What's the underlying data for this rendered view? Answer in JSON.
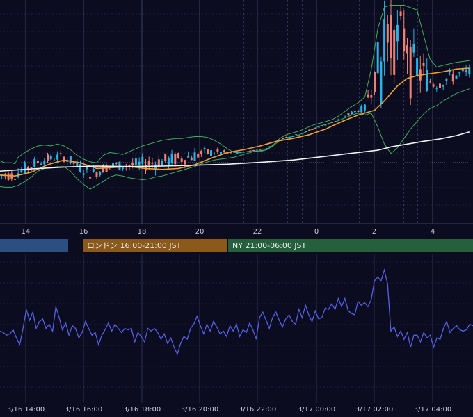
{
  "chart_data": [
    {
      "type": "candlestick",
      "overlays": [
        "bollinger-bands",
        "moving-average-orange",
        "moving-average-white"
      ],
      "x_ticks": [
        "14",
        "16",
        "18",
        "20",
        "22",
        "0",
        "2",
        "4"
      ],
      "grid": true,
      "bollinger": {
        "upper": [
          {
            "t": 0,
            "v": 0.65
          },
          {
            "t": 2,
            "v": 0.62
          },
          {
            "t": 4,
            "v": 0.62
          },
          {
            "t": 5,
            "v": 0.61
          },
          {
            "t": 6,
            "v": 0.68
          },
          {
            "t": 8,
            "v": 0.73
          },
          {
            "t": 10,
            "v": 0.77
          },
          {
            "t": 12,
            "v": 0.8
          },
          {
            "t": 14,
            "v": 0.81
          },
          {
            "t": 16,
            "v": 0.8
          },
          {
            "t": 18,
            "v": 0.82
          },
          {
            "t": 20,
            "v": 0.8
          },
          {
            "t": 22,
            "v": 0.76
          },
          {
            "t": 24,
            "v": 0.7
          },
          {
            "t": 26,
            "v": 0.66
          },
          {
            "t": 28,
            "v": 0.63
          },
          {
            "t": 30,
            "v": 0.62
          },
          {
            "t": 32,
            "v": 0.7
          },
          {
            "t": 34,
            "v": 0.73
          },
          {
            "t": 36,
            "v": 0.72
          },
          {
            "t": 38,
            "v": 0.71
          },
          {
            "t": 40,
            "v": 0.74
          },
          {
            "t": 42,
            "v": 0.77
          },
          {
            "t": 44,
            "v": 0.8
          },
          {
            "t": 46,
            "v": 0.82
          },
          {
            "t": 48,
            "v": 0.84
          },
          {
            "t": 50,
            "v": 0.86
          },
          {
            "t": 52,
            "v": 0.87
          },
          {
            "t": 54,
            "v": 0.88
          },
          {
            "t": 56,
            "v": 0.88
          },
          {
            "t": 58,
            "v": 0.89
          },
          {
            "t": 60,
            "v": 0.9
          },
          {
            "t": 62,
            "v": 0.9
          },
          {
            "t": 64,
            "v": 0.89
          },
          {
            "t": 66,
            "v": 0.86
          },
          {
            "t": 68,
            "v": 0.82
          },
          {
            "t": 70,
            "v": 0.77
          },
          {
            "t": 72,
            "v": 0.73
          },
          {
            "t": 74,
            "v": 0.73
          },
          {
            "t": 76,
            "v": 0.74
          },
          {
            "t": 78,
            "v": 0.75
          },
          {
            "t": 80,
            "v": 0.74
          },
          {
            "t": 82,
            "v": 0.76
          },
          {
            "t": 84,
            "v": 0.81
          },
          {
            "t": 86,
            "v": 0.88
          },
          {
            "t": 88,
            "v": 0.92
          },
          {
            "t": 90,
            "v": 0.94
          },
          {
            "t": 92,
            "v": 0.96
          },
          {
            "t": 94,
            "v": 0.99
          },
          {
            "t": 96,
            "v": 1.02
          },
          {
            "t": 98,
            "v": 1.04
          },
          {
            "t": 100,
            "v": 1.06
          },
          {
            "t": 102,
            "v": 1.08
          },
          {
            "t": 104,
            "v": 1.12
          },
          {
            "t": 106,
            "v": 1.17
          },
          {
            "t": 108,
            "v": 1.22
          },
          {
            "t": 110,
            "v": 1.26
          },
          {
            "t": 112,
            "v": 1.32
          },
          {
            "t": 114,
            "v": 1.62
          },
          {
            "t": 116,
            "v": 2.05
          },
          {
            "t": 118,
            "v": 2.28
          },
          {
            "t": 120,
            "v": 2.3
          },
          {
            "t": 124,
            "v": 2.3
          },
          {
            "t": 128,
            "v": 2.25
          },
          {
            "t": 130,
            "v": 1.98
          },
          {
            "t": 132,
            "v": 1.72
          },
          {
            "t": 134,
            "v": 1.64
          },
          {
            "t": 136,
            "v": 1.66
          },
          {
            "t": 140,
            "v": 1.69
          },
          {
            "t": 144,
            "v": 1.71
          }
        ],
        "lower": [
          {
            "t": 0,
            "v": 0.37
          },
          {
            "t": 2,
            "v": 0.36
          },
          {
            "t": 4,
            "v": 0.36
          },
          {
            "t": 6,
            "v": 0.38
          },
          {
            "t": 8,
            "v": 0.42
          },
          {
            "t": 10,
            "v": 0.47
          },
          {
            "t": 12,
            "v": 0.53
          },
          {
            "t": 14,
            "v": 0.56
          },
          {
            "t": 16,
            "v": 0.57
          },
          {
            "t": 18,
            "v": 0.58
          },
          {
            "t": 20,
            "v": 0.58
          },
          {
            "t": 22,
            "v": 0.53
          },
          {
            "t": 24,
            "v": 0.45
          },
          {
            "t": 26,
            "v": 0.39
          },
          {
            "t": 28,
            "v": 0.34
          },
          {
            "t": 30,
            "v": 0.38
          },
          {
            "t": 32,
            "v": 0.42
          },
          {
            "t": 34,
            "v": 0.47
          },
          {
            "t": 36,
            "v": 0.49
          },
          {
            "t": 38,
            "v": 0.48
          },
          {
            "t": 40,
            "v": 0.46
          },
          {
            "t": 42,
            "v": 0.45
          },
          {
            "t": 44,
            "v": 0.44
          },
          {
            "t": 46,
            "v": 0.45
          },
          {
            "t": 48,
            "v": 0.47
          },
          {
            "t": 50,
            "v": 0.48
          },
          {
            "t": 52,
            "v": 0.5
          },
          {
            "t": 54,
            "v": 0.52
          },
          {
            "t": 56,
            "v": 0.54
          },
          {
            "t": 58,
            "v": 0.56
          },
          {
            "t": 60,
            "v": 0.58
          },
          {
            "t": 62,
            "v": 0.61
          },
          {
            "t": 64,
            "v": 0.63
          },
          {
            "t": 66,
            "v": 0.65
          },
          {
            "t": 68,
            "v": 0.66
          },
          {
            "t": 70,
            "v": 0.67
          },
          {
            "t": 72,
            "v": 0.68
          },
          {
            "t": 74,
            "v": 0.7
          },
          {
            "t": 76,
            "v": 0.72
          },
          {
            "t": 78,
            "v": 0.74
          },
          {
            "t": 80,
            "v": 0.75
          },
          {
            "t": 82,
            "v": 0.76
          },
          {
            "t": 84,
            "v": 0.8
          },
          {
            "t": 86,
            "v": 0.86
          },
          {
            "t": 88,
            "v": 0.89
          },
          {
            "t": 90,
            "v": 0.9
          },
          {
            "t": 92,
            "v": 0.92
          },
          {
            "t": 94,
            "v": 0.95
          },
          {
            "t": 96,
            "v": 0.98
          },
          {
            "t": 98,
            "v": 1.01
          },
          {
            "t": 100,
            "v": 1.03
          },
          {
            "t": 102,
            "v": 1.05
          },
          {
            "t": 104,
            "v": 1.07
          },
          {
            "t": 106,
            "v": 1.1
          },
          {
            "t": 108,
            "v": 1.13
          },
          {
            "t": 110,
            "v": 1.15
          },
          {
            "t": 112,
            "v": 1.13
          },
          {
            "t": 114,
            "v": 1.15
          },
          {
            "t": 116,
            "v": 1.0
          },
          {
            "t": 118,
            "v": 0.82
          },
          {
            "t": 120,
            "v": 0.72
          },
          {
            "t": 122,
            "v": 0.78
          },
          {
            "t": 124,
            "v": 0.88
          },
          {
            "t": 126,
            "v": 0.98
          },
          {
            "t": 128,
            "v": 1.06
          },
          {
            "t": 130,
            "v": 1.14
          },
          {
            "t": 132,
            "v": 1.2
          },
          {
            "t": 134,
            "v": 1.23
          },
          {
            "t": 136,
            "v": 1.28
          },
          {
            "t": 140,
            "v": 1.36
          },
          {
            "t": 144,
            "v": 1.41
          }
        ],
        "color": "#3fae5c"
      },
      "ma_orange": {
        "values": [
          {
            "t": 0,
            "v": 0.49
          },
          {
            "t": 5,
            "v": 0.48
          },
          {
            "t": 10,
            "v": 0.52
          },
          {
            "t": 15,
            "v": 0.6
          },
          {
            "t": 20,
            "v": 0.65
          },
          {
            "t": 25,
            "v": 0.62
          },
          {
            "t": 30,
            "v": 0.56
          },
          {
            "t": 35,
            "v": 0.57
          },
          {
            "t": 40,
            "v": 0.58
          },
          {
            "t": 45,
            "v": 0.56
          },
          {
            "t": 50,
            "v": 0.55
          },
          {
            "t": 55,
            "v": 0.56
          },
          {
            "t": 60,
            "v": 0.6
          },
          {
            "t": 65,
            "v": 0.67
          },
          {
            "t": 70,
            "v": 0.73
          },
          {
            "t": 75,
            "v": 0.76
          },
          {
            "t": 80,
            "v": 0.8
          },
          {
            "t": 85,
            "v": 0.85
          },
          {
            "t": 90,
            "v": 0.88
          },
          {
            "t": 95,
            "v": 0.92
          },
          {
            "t": 100,
            "v": 0.98
          },
          {
            "t": 105,
            "v": 1.06
          },
          {
            "t": 110,
            "v": 1.13
          },
          {
            "t": 115,
            "v": 1.18
          },
          {
            "t": 118,
            "v": 1.28
          },
          {
            "t": 120,
            "v": 1.36
          },
          {
            "t": 122,
            "v": 1.44
          },
          {
            "t": 125,
            "v": 1.52
          },
          {
            "t": 128,
            "v": 1.55
          },
          {
            "t": 132,
            "v": 1.57
          },
          {
            "t": 136,
            "v": 1.59
          },
          {
            "t": 140,
            "v": 1.62
          },
          {
            "t": 144,
            "v": 1.63
          }
        ],
        "color": "#f0a030"
      },
      "ma_white": {
        "values": [
          {
            "t": 0,
            "v": 0.53
          },
          {
            "t": 10,
            "v": 0.555
          },
          {
            "t": 20,
            "v": 0.575
          },
          {
            "t": 30,
            "v": 0.585
          },
          {
            "t": 40,
            "v": 0.58
          },
          {
            "t": 50,
            "v": 0.585
          },
          {
            "t": 60,
            "v": 0.595
          },
          {
            "t": 70,
            "v": 0.605
          },
          {
            "t": 80,
            "v": 0.625
          },
          {
            "t": 90,
            "v": 0.65
          },
          {
            "t": 100,
            "v": 0.69
          },
          {
            "t": 110,
            "v": 0.73
          },
          {
            "t": 116,
            "v": 0.755
          },
          {
            "t": 120,
            "v": 0.79
          },
          {
            "t": 125,
            "v": 0.82
          },
          {
            "t": 130,
            "v": 0.85
          },
          {
            "t": 135,
            "v": 0.875
          },
          {
            "t": 140,
            "v": 0.91
          },
          {
            "t": 144,
            "v": 0.95
          }
        ],
        "color": "#f2f2f2"
      },
      "spike": {
        "t": 118,
        "high": 2.35,
        "low": 1.55
      },
      "dotted_level": 0.62,
      "up_color": "#26b5e8",
      "down_color": "#ef7f6e"
    },
    {
      "type": "line",
      "series_color": "#5560e8",
      "x_ticks": [
        "3/16 14:00",
        "3/16 16:00",
        "3/16 18:00",
        "3/16 20:00",
        "3/16 22:00",
        "3/17 00:00",
        "3/17 02:00",
        "3/17 04:00"
      ],
      "grid": true,
      "values": [
        0.48,
        0.47,
        0.45,
        0.46,
        0.49,
        0.43,
        0.38,
        0.5,
        0.64,
        0.56,
        0.62,
        0.5,
        0.55,
        0.57,
        0.5,
        0.53,
        0.48,
        0.66,
        0.58,
        0.49,
        0.54,
        0.45,
        0.52,
        0.5,
        0.43,
        0.47,
        0.55,
        0.5,
        0.45,
        0.47,
        0.38,
        0.45,
        0.49,
        0.54,
        0.48,
        0.53,
        0.5,
        0.47,
        0.5,
        0.49,
        0.5,
        0.4,
        0.47,
        0.44,
        0.4,
        0.5,
        0.48,
        0.5,
        0.47,
        0.42,
        0.46,
        0.39,
        0.43,
        0.36,
        0.31,
        0.39,
        0.44,
        0.42,
        0.5,
        0.53,
        0.59,
        0.52,
        0.46,
        0.53,
        0.48,
        0.55,
        0.51,
        0.46,
        0.48,
        0.44,
        0.52,
        0.48,
        0.53,
        0.44,
        0.49,
        0.47,
        0.54,
        0.49,
        0.42,
        0.58,
        0.62,
        0.56,
        0.5,
        0.58,
        0.62,
        0.56,
        0.51,
        0.57,
        0.6,
        0.55,
        0.53,
        0.64,
        0.58,
        0.67,
        0.6,
        0.55,
        0.63,
        0.57,
        0.58,
        0.65,
        0.64,
        0.68,
        0.64,
        0.72,
        0.66,
        0.72,
        0.63,
        0.61,
        0.6,
        0.7,
        0.67,
        0.69,
        0.66,
        0.71,
        0.85,
        0.88,
        0.85,
        0.93,
        0.83,
        0.48,
        0.51,
        0.44,
        0.48,
        0.42,
        0.47,
        0.36,
        0.45,
        0.45,
        0.4,
        0.47,
        0.43,
        0.45,
        0.36,
        0.43,
        0.42,
        0.5,
        0.55,
        0.47,
        0.5,
        0.52,
        0.49,
        0.48,
        0.49,
        0.53,
        0.52
      ]
    }
  ],
  "sessions": [
    {
      "label": "",
      "color": "#2a4f80"
    },
    {
      "label": "ロンドン 16:00-21:00 JST",
      "color": "#8b5a1a"
    },
    {
      "label": "NY 21:00-06:00 JST",
      "color": "#265f3c"
    }
  ]
}
